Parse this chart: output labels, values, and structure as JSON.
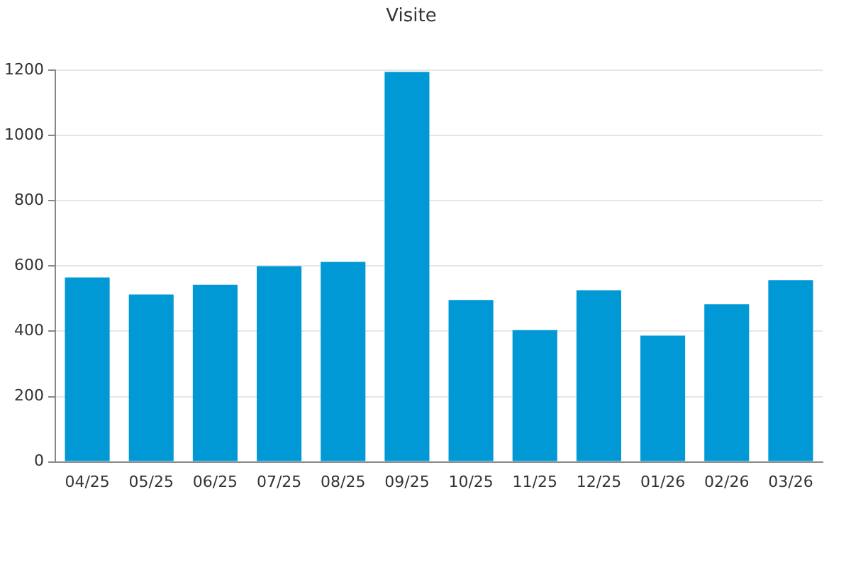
{
  "chart_data": {
    "type": "bar",
    "title": "Visite",
    "categories": [
      "04/25",
      "05/25",
      "06/25",
      "07/25",
      "08/25",
      "09/25",
      "10/25",
      "11/25",
      "12/25",
      "01/26",
      "02/26",
      "03/26"
    ],
    "values": [
      565,
      513,
      543,
      600,
      613,
      1195,
      496,
      404,
      526,
      387,
      483,
      557
    ],
    "color": "#0099d6",
    "ylim": [
      0,
      1200
    ],
    "yticks": [
      0,
      200,
      400,
      600,
      800,
      1000,
      1200
    ],
    "grid": "y"
  }
}
